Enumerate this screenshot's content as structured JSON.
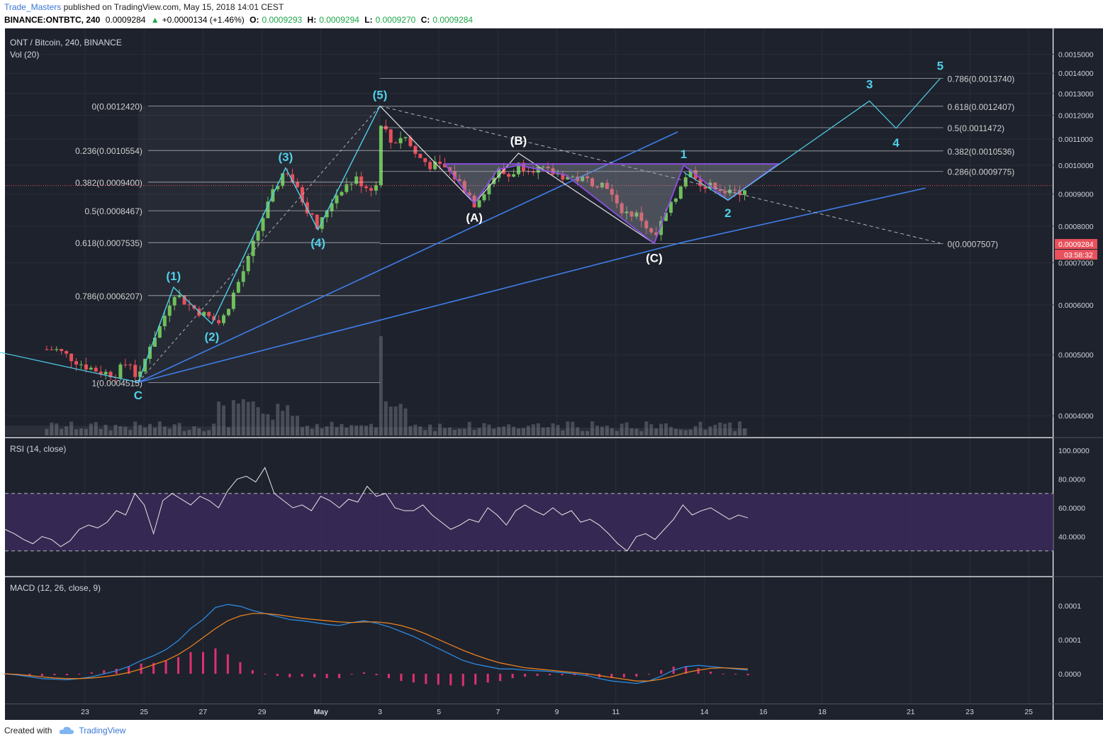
{
  "header": {
    "author": "Trade_Masters",
    "published": "published on TradingView.com, May 15, 2018 14:01 CEST",
    "symbol": "BINANCE:ONTBTC, 240",
    "last": "0.0009284",
    "change": "+0.0000134 (+1.46%)",
    "o_label": "O:",
    "o": "0.0009293",
    "h_label": "H:",
    "h": "0.0009294",
    "l_label": "L:",
    "l": "0.0009270",
    "c_label": "C:",
    "c": "0.0009284"
  },
  "footer": {
    "created_with": "Created with",
    "brand": "TradingView"
  },
  "colors": {
    "background": "#1e222d",
    "grid": "#2a2e39",
    "bull": "#6fbf5a",
    "bear": "#e8505b",
    "wave": "#4fd0e8",
    "trendline": "#3f7ee8",
    "pattern": "#8a4fe0",
    "fib": "#d0d0d0",
    "rsi_band": "#3a2a5a",
    "macd": "#2a8ae0",
    "signal": "#e8801e",
    "hist": "#e03070"
  },
  "chart_data": [
    {
      "type": "candlestick",
      "title": "ONT / Bitcoin, 240, BINANCE",
      "subtitle": "Vol (20)",
      "x_ticks": [
        "23",
        "25",
        "27",
        "29",
        "May",
        "3",
        "5",
        "7",
        "9",
        "11",
        "14",
        "16",
        "18",
        "21",
        "23",
        "25"
      ],
      "y_ticks": [
        "0.0015000",
        "0.0014000",
        "0.0013000",
        "0.0012000",
        "0.0011000",
        "0.0010000",
        "0.0009000",
        "0.0008000",
        "0.0007000",
        "0.0006000",
        "0.0005000",
        "0.0004000"
      ],
      "ylim": [
        0.00038,
        0.00155
      ],
      "last_price": "0.0009284",
      "countdown": "03:58:32",
      "close_path": [
        {
          "d": 22.0,
          "v": 0.00051
        },
        {
          "d": 22.5,
          "v": 0.000495
        },
        {
          "d": 23.0,
          "v": 0.00048
        },
        {
          "d": 23.5,
          "v": 0.00047
        },
        {
          "d": 24.0,
          "v": 0.000465
        },
        {
          "d": 24.5,
          "v": 0.00049
        },
        {
          "d": 24.8,
          "v": 0.000452
        },
        {
          "d": 25.2,
          "v": 0.00052
        },
        {
          "d": 25.6,
          "v": 0.00056
        },
        {
          "d": 26.0,
          "v": 0.00063
        },
        {
          "d": 26.5,
          "v": 0.0006
        },
        {
          "d": 27.0,
          "v": 0.00058
        },
        {
          "d": 27.3,
          "v": 0.00057
        },
        {
          "d": 27.6,
          "v": 0.00056
        },
        {
          "d": 28.0,
          "v": 0.00062
        },
        {
          "d": 28.5,
          "v": 0.0007
        },
        {
          "d": 29.0,
          "v": 0.00082
        },
        {
          "d": 29.5,
          "v": 0.00093
        },
        {
          "d": 29.8,
          "v": 0.00099
        },
        {
          "d": 30.2,
          "v": 0.00091
        },
        {
          "d": 30.6,
          "v": 0.00084
        },
        {
          "d": 30.9,
          "v": 0.00079
        },
        {
          "d": 31.3,
          "v": 0.00087
        },
        {
          "d": 31.7,
          "v": 0.00092
        },
        {
          "d": 32.2,
          "v": 0.00095
        },
        {
          "d": 32.6,
          "v": 0.00092
        },
        {
          "d": 32.9,
          "v": 0.00093
        },
        {
          "d": 33.0,
          "v": 0.00118
        },
        {
          "d": 33.4,
          "v": 0.00108
        },
        {
          "d": 33.8,
          "v": 0.00112
        },
        {
          "d": 34.2,
          "v": 0.00104
        },
        {
          "d": 34.7,
          "v": 0.001
        },
        {
          "d": 35.2,
          "v": 0.00099
        },
        {
          "d": 35.6,
          "v": 0.00095
        },
        {
          "d": 36.0,
          "v": 0.0009
        },
        {
          "d": 36.2,
          "v": 0.00087
        },
        {
          "d": 36.6,
          "v": 0.00092
        },
        {
          "d": 37.0,
          "v": 0.00098
        },
        {
          "d": 37.4,
          "v": 0.00096
        },
        {
          "d": 37.7,
          "v": 0.001
        },
        {
          "d": 38.2,
          "v": 0.00099
        },
        {
          "d": 38.7,
          "v": 0.000975
        },
        {
          "d": 39.3,
          "v": 0.00096
        },
        {
          "d": 39.8,
          "v": 0.00095
        },
        {
          "d": 40.3,
          "v": 0.00094
        },
        {
          "d": 40.7,
          "v": 0.00093
        },
        {
          "d": 41.0,
          "v": 0.00086
        },
        {
          "d": 41.4,
          "v": 0.00084
        },
        {
          "d": 41.8,
          "v": 0.00083
        },
        {
          "d": 42.1,
          "v": 0.00079
        },
        {
          "d": 42.3,
          "v": 0.00076
        },
        {
          "d": 42.6,
          "v": 0.00082
        },
        {
          "d": 43.0,
          "v": 0.00088
        },
        {
          "d": 43.3,
          "v": 0.00096
        },
        {
          "d": 43.6,
          "v": 0.00098
        },
        {
          "d": 44.0,
          "v": 0.00092
        },
        {
          "d": 44.4,
          "v": 0.00093
        },
        {
          "d": 44.8,
          "v": 0.0009
        },
        {
          "d": 45.2,
          "v": 0.00091
        },
        {
          "d": 45.5,
          "v": 0.000928
        }
      ],
      "volume_spike_day": 33.0,
      "fib_left": [
        {
          "label": "0(0.0012420)",
          "value": 0.001242
        },
        {
          "label": "0.236(0.0010554)",
          "value": 0.0010554
        },
        {
          "label": "0.382(0.0009400)",
          "value": 0.00094
        },
        {
          "label": "0.5(0.0008467)",
          "value": 0.0008467
        },
        {
          "label": "0.618(0.0007535)",
          "value": 0.0007535
        },
        {
          "label": "0.786(0.0006207)",
          "value": 0.0006207
        },
        {
          "label": "1(0.0004515)",
          "value": 0.0004515
        }
      ],
      "fib_right": [
        {
          "label": "0.786(0.0013740)",
          "value": 0.001374
        },
        {
          "label": "0.618(0.0012407)",
          "value": 0.0012407
        },
        {
          "label": "0.5(0.0011472)",
          "value": 0.0011472
        },
        {
          "label": "0.382(0.0010536)",
          "value": 0.0010536
        },
        {
          "label": "0.286(0.0009775)",
          "value": 0.0009775
        },
        {
          "label": "0(0.0007507)",
          "value": 0.0007507
        }
      ],
      "impulse_labels": [
        {
          "label": "C",
          "d": 24.8,
          "v": 0.000452
        },
        {
          "label": "(1)",
          "d": 26.0,
          "v": 0.00064
        },
        {
          "label": "(2)",
          "d": 27.3,
          "v": 0.00056
        },
        {
          "label": "(3)",
          "d": 29.8,
          "v": 0.00099
        },
        {
          "label": "(4)",
          "d": 30.9,
          "v": 0.00079
        },
        {
          "label": "(5)",
          "d": 33.0,
          "v": 0.001242
        }
      ],
      "correction_labels": [
        {
          "label": "(A)",
          "d": 36.2,
          "v": 0.00087
        },
        {
          "label": "(B)",
          "d": 37.7,
          "v": 0.001045
        },
        {
          "label": "(C)",
          "d": 42.3,
          "v": 0.000751
        }
      ],
      "projection_labels": [
        {
          "label": "1",
          "d": 43.3,
          "v": 0.001
        },
        {
          "label": "2",
          "d": 44.8,
          "v": 0.00088
        },
        {
          "label": "3",
          "d": 49.6,
          "v": 0.001265
        },
        {
          "label": "4",
          "d": 50.5,
          "v": 0.001145
        },
        {
          "label": "5",
          "d": 52.0,
          "v": 0.001374
        }
      ]
    },
    {
      "type": "line",
      "title": "RSI (14, close)",
      "y_ticks": [
        "100.0000",
        "80.0000",
        "60.0000",
        "40.0000"
      ],
      "ylim": [
        20,
        100
      ],
      "bands": [
        70,
        30
      ],
      "values": [
        45,
        42,
        38,
        35,
        40,
        38,
        33,
        37,
        45,
        48,
        46,
        50,
        58,
        55,
        70,
        62,
        42,
        65,
        70,
        66,
        62,
        68,
        65,
        60,
        72,
        80,
        82,
        78,
        88,
        70,
        65,
        60,
        62,
        58,
        68,
        65,
        60,
        66,
        64,
        75,
        68,
        70,
        60,
        58,
        58,
        62,
        55,
        50,
        45,
        48,
        52,
        50,
        60,
        55,
        48,
        58,
        62,
        58,
        55,
        60,
        55,
        58,
        50,
        52,
        48,
        42,
        35,
        30,
        40,
        42,
        38,
        45,
        52,
        62,
        55,
        58,
        60,
        56,
        52,
        55,
        53
      ]
    },
    {
      "type": "line",
      "title": "MACD (12, 26, close, 9)",
      "y_ticks": [
        "0.0001",
        "0.0001",
        "0.0000"
      ],
      "macd": [
        0,
        -2,
        -5,
        -8,
        -9,
        -10,
        -8,
        -5,
        0,
        5,
        12,
        22,
        30,
        40,
        55,
        75,
        90,
        110,
        115,
        112,
        105,
        100,
        95,
        90,
        88,
        85,
        82,
        80,
        85,
        88,
        84,
        78,
        70,
        62,
        52,
        42,
        32,
        22,
        16,
        12,
        8,
        8,
        6,
        5,
        4,
        2,
        0,
        -3,
        -8,
        -12,
        -14,
        -16,
        -12,
        -4,
        6,
        12,
        14,
        12,
        10,
        8,
        6
      ],
      "signal": [
        0,
        -1,
        -3,
        -5,
        -7,
        -8,
        -8,
        -7,
        -5,
        -2,
        2,
        8,
        15,
        22,
        32,
        45,
        60,
        75,
        88,
        96,
        100,
        100,
        98,
        95,
        92,
        90,
        88,
        86,
        85,
        86,
        86,
        84,
        80,
        74,
        66,
        57,
        48,
        39,
        31,
        24,
        18,
        14,
        10,
        8,
        6,
        4,
        2,
        0,
        -3,
        -6,
        -9,
        -12,
        -12,
        -9,
        -4,
        2,
        6,
        9,
        10,
        9,
        8
      ],
      "hist": [
        0,
        -1,
        -2,
        -3,
        -2,
        -2,
        0,
        2,
        5,
        7,
        10,
        14,
        15,
        18,
        23,
        30,
        30,
        35,
        27,
        16,
        5,
        0,
        -3,
        -5,
        -4,
        -5,
        -6,
        -6,
        0,
        2,
        -2,
        -6,
        -10,
        -12,
        -14,
        -15,
        -16,
        -17,
        -15,
        -12,
        -10,
        -6,
        -4,
        -3,
        -2,
        -2,
        -2,
        -3,
        -5,
        -6,
        -5,
        -4,
        0,
        5,
        10,
        10,
        8,
        3,
        0,
        -1,
        -2
      ]
    }
  ]
}
